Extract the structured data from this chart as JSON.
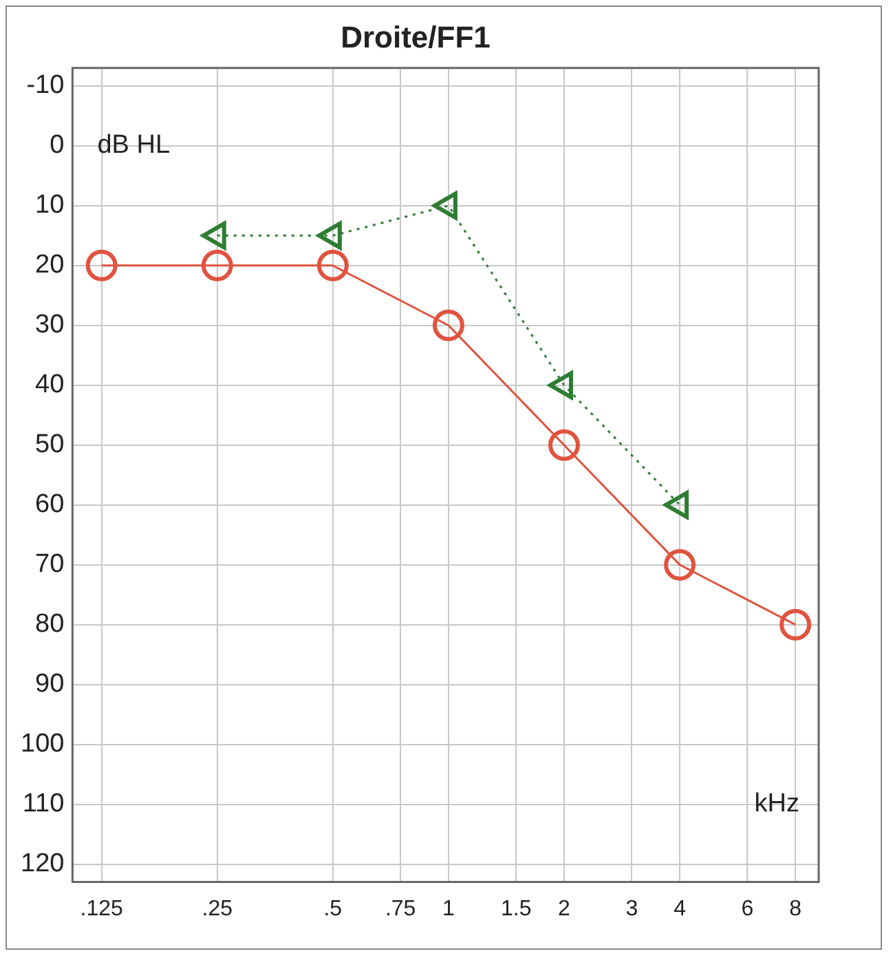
{
  "chart_data": {
    "type": "line",
    "title": "Droite/FF1",
    "xlabel": "kHz",
    "ylabel": "dB HL",
    "xlim": [
      0.105,
      9.2
    ],
    "ylim": [
      123,
      -13
    ],
    "log": "x",
    "grid": true,
    "legend": false,
    "xticks": [
      {
        "value": 0.125,
        "label": ".125"
      },
      {
        "value": 0.25,
        "label": ".25"
      },
      {
        "value": 0.5,
        "label": ".5"
      },
      {
        "value": 0.75,
        "label": ".75"
      },
      1,
      {
        "value": 1.5,
        "label": "1.5"
      },
      2,
      3,
      4,
      6,
      8
    ],
    "yticks": [
      -10,
      0,
      10,
      20,
      30,
      40,
      50,
      60,
      70,
      80,
      90,
      100,
      110,
      120
    ],
    "series": [
      {
        "x": [
          0.125,
          0.25,
          0.5,
          1,
          2,
          4,
          8
        ],
        "values": [
          20,
          20,
          20,
          30,
          50,
          70,
          80
        ],
        "color": "#e0533f",
        "marker": "circle",
        "line_style": "solid"
      },
      {
        "x": [
          0.25,
          0.5,
          1,
          2,
          4
        ],
        "values": [
          15,
          15,
          10,
          40,
          60
        ],
        "color": "#2e7d32",
        "marker": "triangle",
        "line_style": "dotted"
      }
    ]
  }
}
